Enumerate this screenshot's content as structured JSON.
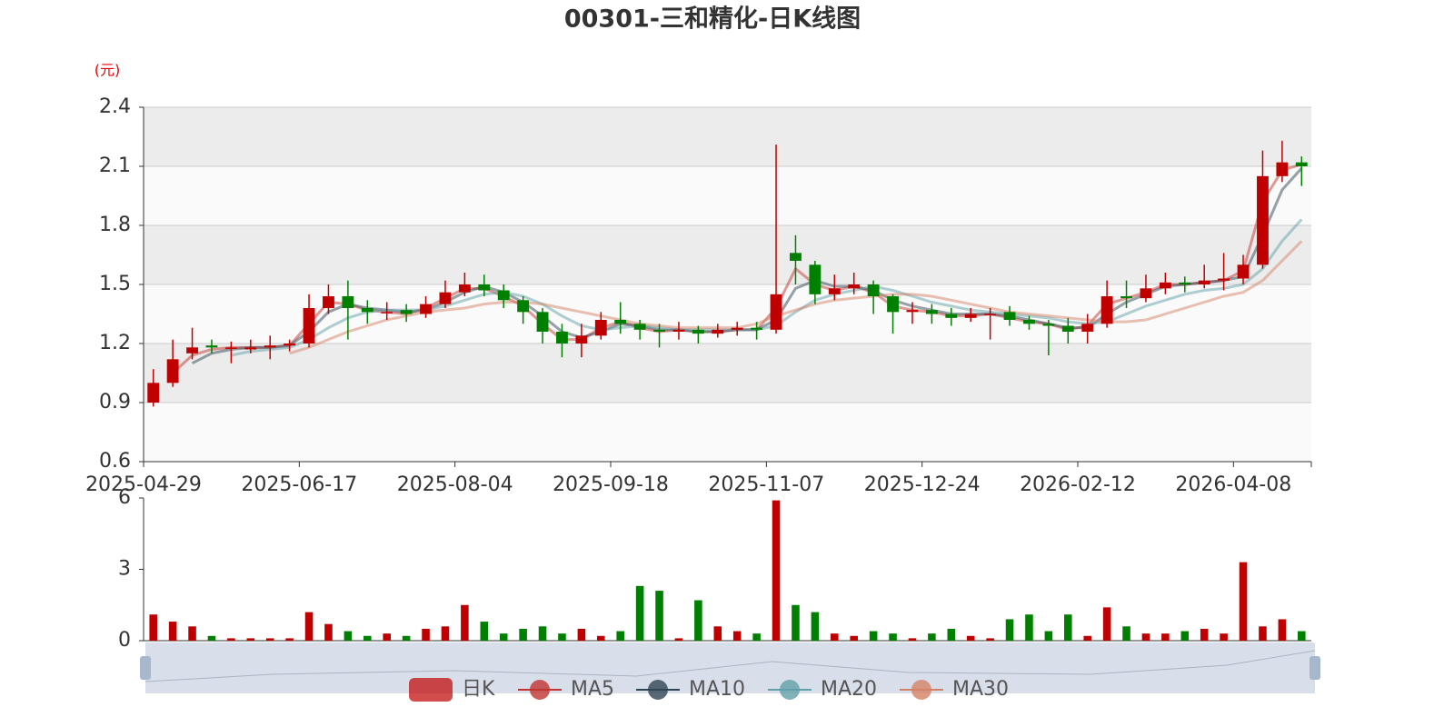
{
  "chart_data": [
    {
      "type": "candlestick",
      "title": "00301-三和精化-日K线图",
      "y_label": "(元)",
      "categories": [
        "2025-04-29",
        null,
        null,
        null,
        null,
        null,
        null,
        null,
        "2025-06-17",
        null,
        null,
        null,
        null,
        null,
        null,
        null,
        "2025-08-04",
        null,
        null,
        null,
        null,
        null,
        null,
        null,
        "2025-09-18",
        null,
        null,
        null,
        null,
        null,
        null,
        null,
        "2025-11-07",
        null,
        null,
        null,
        null,
        null,
        null,
        null,
        "2025-12-24",
        null,
        null,
        null,
        null,
        null,
        null,
        null,
        "2026-02-12",
        null,
        null,
        null,
        null,
        null,
        null,
        null,
        "2026-04-08",
        null,
        null,
        null
      ],
      "ylim": [
        0.6,
        2.4
      ],
      "yticks": [
        0.6,
        0.9,
        1.2,
        1.5,
        1.8,
        2.1,
        2.4
      ],
      "grid": true,
      "split_area": true,
      "legend": "bottom",
      "series": [
        {
          "name": "日K",
          "type": "candlestick",
          "color_up": "#c00000",
          "color_down": "#008000",
          "values": [
            [
              0.9,
              1.0,
              0.88,
              1.07
            ],
            [
              1.0,
              1.12,
              0.98,
              1.22
            ],
            [
              1.15,
              1.18,
              1.12,
              1.28
            ],
            [
              1.19,
              1.18,
              1.15,
              1.22
            ],
            [
              1.18,
              1.18,
              1.1,
              1.21
            ],
            [
              1.17,
              1.18,
              1.15,
              1.22
            ],
            [
              1.18,
              1.19,
              1.12,
              1.24
            ],
            [
              1.19,
              1.2,
              1.16,
              1.22
            ],
            [
              1.2,
              1.38,
              1.18,
              1.45
            ],
            [
              1.38,
              1.44,
              1.35,
              1.5
            ],
            [
              1.44,
              1.38,
              1.22,
              1.52
            ],
            [
              1.38,
              1.36,
              1.3,
              1.42
            ],
            [
              1.36,
              1.36,
              1.32,
              1.41
            ],
            [
              1.37,
              1.35,
              1.31,
              1.4
            ],
            [
              1.35,
              1.4,
              1.33,
              1.44
            ],
            [
              1.4,
              1.46,
              1.38,
              1.52
            ],
            [
              1.46,
              1.5,
              1.44,
              1.56
            ],
            [
              1.5,
              1.47,
              1.44,
              1.55
            ],
            [
              1.47,
              1.42,
              1.38,
              1.5
            ],
            [
              1.42,
              1.36,
              1.3,
              1.44
            ],
            [
              1.36,
              1.26,
              1.2,
              1.38
            ],
            [
              1.26,
              1.2,
              1.13,
              1.3
            ],
            [
              1.2,
              1.24,
              1.13,
              1.3
            ],
            [
              1.24,
              1.32,
              1.22,
              1.36
            ],
            [
              1.32,
              1.3,
              1.25,
              1.41
            ],
            [
              1.3,
              1.27,
              1.22,
              1.32
            ],
            [
              1.27,
              1.26,
              1.18,
              1.3
            ],
            [
              1.26,
              1.27,
              1.22,
              1.31
            ],
            [
              1.27,
              1.25,
              1.2,
              1.29
            ],
            [
              1.25,
              1.27,
              1.23,
              1.3
            ],
            [
              1.27,
              1.28,
              1.24,
              1.31
            ],
            [
              1.28,
              1.27,
              1.22,
              1.31
            ],
            [
              1.27,
              1.45,
              1.25,
              2.21
            ],
            [
              1.66,
              1.62,
              1.5,
              1.75
            ],
            [
              1.6,
              1.45,
              1.4,
              1.62
            ],
            [
              1.45,
              1.48,
              1.42,
              1.55
            ],
            [
              1.48,
              1.5,
              1.45,
              1.56
            ],
            [
              1.5,
              1.44,
              1.35,
              1.52
            ],
            [
              1.44,
              1.36,
              1.25,
              1.45
            ],
            [
              1.36,
              1.37,
              1.3,
              1.41
            ],
            [
              1.37,
              1.35,
              1.3,
              1.4
            ],
            [
              1.35,
              1.33,
              1.29,
              1.38
            ],
            [
              1.33,
              1.35,
              1.31,
              1.38
            ],
            [
              1.35,
              1.35,
              1.22,
              1.38
            ],
            [
              1.36,
              1.32,
              1.29,
              1.39
            ],
            [
              1.32,
              1.3,
              1.27,
              1.34
            ],
            [
              1.3,
              1.29,
              1.14,
              1.32
            ],
            [
              1.29,
              1.26,
              1.2,
              1.33
            ],
            [
              1.26,
              1.3,
              1.2,
              1.35
            ],
            [
              1.3,
              1.44,
              1.28,
              1.52
            ],
            [
              1.44,
              1.43,
              1.38,
              1.52
            ],
            [
              1.43,
              1.48,
              1.41,
              1.55
            ],
            [
              1.48,
              1.51,
              1.45,
              1.56
            ],
            [
              1.51,
              1.5,
              1.46,
              1.54
            ],
            [
              1.5,
              1.52,
              1.48,
              1.6
            ],
            [
              1.52,
              1.53,
              1.47,
              1.66
            ],
            [
              1.53,
              1.6,
              1.5,
              1.65
            ],
            [
              1.6,
              2.05,
              1.58,
              2.18
            ],
            [
              2.05,
              2.12,
              2.02,
              2.23
            ],
            [
              2.12,
              2.1,
              2.0,
              2.15
            ]
          ]
        },
        {
          "name": "MA5",
          "type": "line",
          "color": "#c23531",
          "values": [
            null,
            1.05,
            1.14,
            1.17,
            1.18,
            1.18,
            1.18,
            1.19,
            1.3,
            1.41,
            1.4,
            1.37,
            1.36,
            1.35,
            1.38,
            1.43,
            1.48,
            1.48,
            1.44,
            1.39,
            1.3,
            1.22,
            1.22,
            1.28,
            1.31,
            1.28,
            1.26,
            1.27,
            1.26,
            1.26,
            1.27,
            1.27,
            1.38,
            1.58,
            1.5,
            1.47,
            1.49,
            1.46,
            1.39,
            1.37,
            1.36,
            1.34,
            1.34,
            1.35,
            1.33,
            1.31,
            1.3,
            1.27,
            1.29,
            1.4,
            1.43,
            1.46,
            1.5,
            1.5,
            1.51,
            1.52,
            1.57,
            1.92,
            2.08,
            2.11
          ]
        },
        {
          "name": "MA10",
          "type": "line",
          "color": "#2f4554",
          "values": [
            null,
            null,
            1.1,
            1.15,
            1.17,
            1.18,
            1.18,
            1.19,
            1.26,
            1.36,
            1.4,
            1.38,
            1.37,
            1.36,
            1.37,
            1.41,
            1.46,
            1.49,
            1.46,
            1.41,
            1.34,
            1.26,
            1.23,
            1.26,
            1.3,
            1.29,
            1.27,
            1.27,
            1.26,
            1.26,
            1.27,
            1.27,
            1.32,
            1.48,
            1.52,
            1.49,
            1.49,
            1.47,
            1.42,
            1.39,
            1.37,
            1.35,
            1.35,
            1.35,
            1.34,
            1.32,
            1.3,
            1.28,
            1.28,
            1.35,
            1.41,
            1.45,
            1.49,
            1.5,
            1.51,
            1.52,
            1.54,
            1.75,
            1.98,
            2.09
          ]
        },
        {
          "name": "MA20",
          "type": "line",
          "color": "#61a0a8",
          "values": [
            null,
            null,
            null,
            null,
            1.14,
            1.16,
            1.17,
            1.18,
            1.22,
            1.28,
            1.33,
            1.36,
            1.37,
            1.37,
            1.37,
            1.39,
            1.42,
            1.45,
            1.46,
            1.44,
            1.4,
            1.34,
            1.29,
            1.27,
            1.28,
            1.29,
            1.28,
            1.27,
            1.27,
            1.27,
            1.27,
            1.27,
            1.29,
            1.36,
            1.42,
            1.45,
            1.47,
            1.49,
            1.47,
            1.44,
            1.41,
            1.39,
            1.37,
            1.36,
            1.35,
            1.34,
            1.33,
            1.31,
            1.3,
            1.31,
            1.35,
            1.39,
            1.42,
            1.45,
            1.47,
            1.48,
            1.5,
            1.58,
            1.72,
            1.83
          ]
        },
        {
          "name": "MA30",
          "type": "line",
          "color": "#d48265",
          "values": [
            null,
            null,
            null,
            null,
            null,
            null,
            null,
            1.15,
            1.18,
            1.22,
            1.26,
            1.29,
            1.32,
            1.34,
            1.36,
            1.37,
            1.38,
            1.4,
            1.41,
            1.41,
            1.4,
            1.38,
            1.36,
            1.34,
            1.32,
            1.3,
            1.29,
            1.28,
            1.28,
            1.28,
            1.28,
            1.3,
            1.34,
            1.37,
            1.4,
            1.42,
            1.43,
            1.44,
            1.45,
            1.45,
            1.44,
            1.42,
            1.4,
            1.38,
            1.36,
            1.35,
            1.34,
            1.33,
            1.32,
            1.31,
            1.31,
            1.32,
            1.35,
            1.38,
            1.41,
            1.44,
            1.46,
            1.52,
            1.62,
            1.72
          ]
        }
      ]
    },
    {
      "type": "bar",
      "ylim": [
        0,
        6
      ],
      "yticks": [
        0,
        3,
        6
      ],
      "values": [
        1.1,
        0.8,
        0.6,
        0.2,
        0.1,
        0.1,
        0.1,
        0.1,
        1.2,
        0.7,
        0.4,
        0.2,
        0.3,
        0.2,
        0.5,
        0.6,
        1.5,
        0.8,
        0.3,
        0.5,
        0.6,
        0.3,
        0.5,
        0.2,
        0.4,
        2.3,
        2.1,
        0.1,
        1.7,
        0.6,
        0.4,
        0.3,
        5.9,
        1.5,
        1.2,
        0.3,
        0.2,
        0.4,
        0.3,
        0.1,
        0.3,
        0.5,
        0.2,
        0.1,
        0.9,
        1.1,
        0.4,
        1.1,
        0.2,
        1.4,
        0.6,
        0.3,
        0.3,
        0.4,
        0.5,
        0.3,
        3.3,
        0.6,
        0.9,
        0.4
      ]
    }
  ]
}
